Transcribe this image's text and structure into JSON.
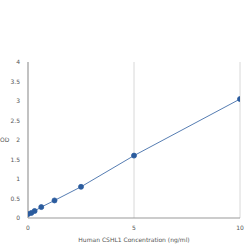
{
  "chart_data": {
    "type": "line",
    "x_label": "Human CSHL1 Concentration (ng/ml)",
    "y_label": "OD",
    "x": [
      0,
      0.156,
      0.312,
      0.625,
      1.25,
      2.5,
      5,
      10
    ],
    "series": [
      {
        "name": "OD",
        "color": "#2b5c9e",
        "values": [
          0.1,
          0.13,
          0.18,
          0.28,
          0.45,
          0.8,
          1.6,
          3.05
        ],
        "marker": "circle",
        "line_style": "solid"
      }
    ],
    "xlim": [
      0,
      10
    ],
    "xticks": [
      0,
      5,
      10
    ],
    "ylim": [
      0,
      4
    ],
    "yticks": [
      0,
      0.5,
      1,
      1.5,
      2,
      2.5,
      3,
      3.5,
      4
    ],
    "grid": true
  }
}
